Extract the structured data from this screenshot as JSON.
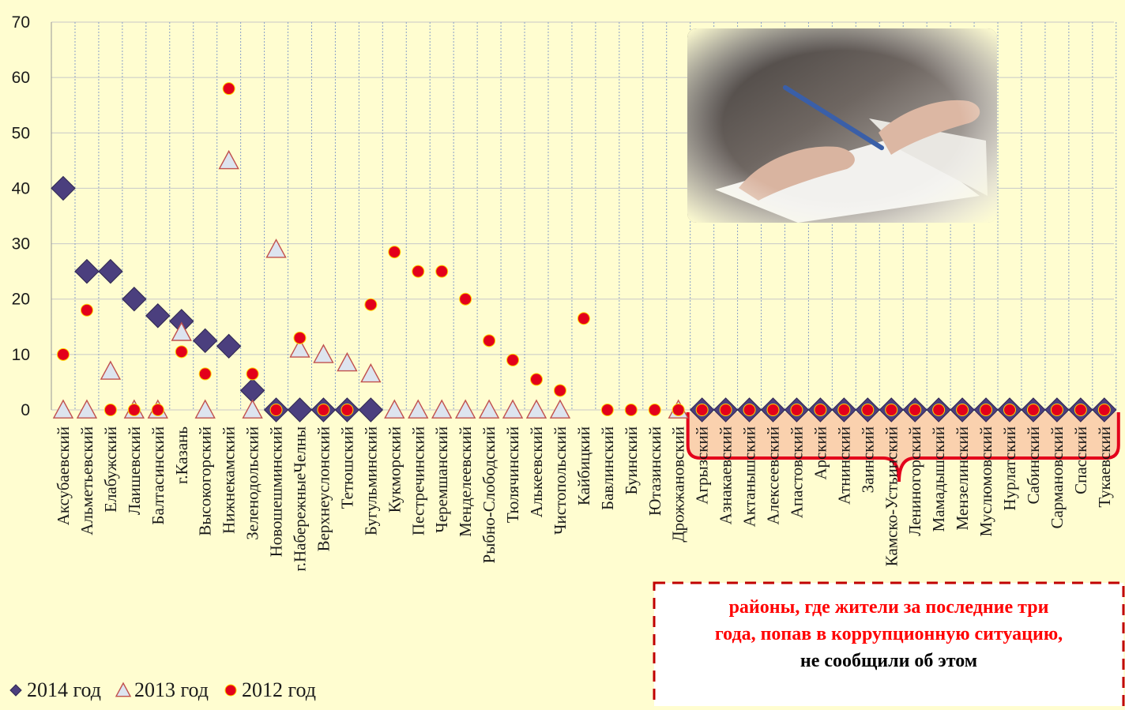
{
  "chart_data": {
    "type": "scatter",
    "categories": [
      "Аксубаевский",
      "Альметьевский",
      "Елабужский",
      "Лаишевский",
      "Балтасинский",
      "г.Казань",
      "Высокогорский",
      "Нижнекамский",
      "Зеленодольский",
      "Новошешминский",
      "г.НабережныеЧелны",
      "Верхнеуслонский",
      "Тетюшский",
      "Бугульминский",
      "Кукморский",
      "Пестречинский",
      "Черемшанский",
      "Менделеевский",
      "Рыбно-Слободский",
      "Тюлячинский",
      "Алькеевский",
      "Чистопольский",
      "Кайбицкий",
      "Бавлинский",
      "Буинский",
      "Ютазинский",
      "Дрожжановский",
      "Агрызский",
      "Азнакаевский",
      "Актанышский",
      "Алексеевский",
      "Апастовский",
      "Арский",
      "Атнинский",
      "Заинский",
      "Камско-Устьинский",
      "Лениногорский",
      "Мамадышский",
      "Мензелинский",
      "Муслюмовский",
      "Нурлатский",
      "Сабинский",
      "Сармановский",
      "Спасский",
      "Тукаевский"
    ],
    "series": [
      {
        "name": "2014 год",
        "marker": "diamond",
        "color": "#4b3f7e",
        "values": [
          40,
          25,
          25,
          20,
          17,
          16,
          12.5,
          11.5,
          3.5,
          0,
          0,
          0,
          0,
          0,
          null,
          null,
          null,
          null,
          null,
          null,
          null,
          null,
          null,
          null,
          null,
          null,
          null,
          0,
          0,
          0,
          0,
          0,
          0,
          0,
          0,
          0,
          0,
          0,
          0,
          0,
          0,
          0,
          0,
          0,
          0
        ]
      },
      {
        "name": "2013 год",
        "marker": "triangle",
        "color": "#dde4ef",
        "values": [
          0,
          0,
          7,
          0,
          0,
          14,
          0,
          45,
          0,
          29,
          11,
          10,
          8.5,
          6.5,
          0,
          0,
          0,
          0,
          0,
          0,
          0,
          0,
          null,
          null,
          null,
          null,
          0,
          null,
          null,
          null,
          null,
          null,
          null,
          null,
          null,
          null,
          null,
          null,
          null,
          null,
          null,
          null,
          null,
          null,
          null
        ]
      },
      {
        "name": "2012 год",
        "marker": "circle",
        "color": "#e3001b",
        "values": [
          10,
          18,
          0,
          0,
          0,
          10.5,
          6.5,
          58,
          6.5,
          0,
          13,
          0,
          0,
          19,
          28.5,
          25,
          25,
          20,
          12.5,
          9,
          5.5,
          3.5,
          16.5,
          0,
          0,
          0,
          0,
          0,
          0,
          0,
          0,
          0,
          0,
          0,
          0,
          0,
          0,
          0,
          0,
          0,
          0,
          0,
          0,
          0,
          0
        ]
      }
    ],
    "ylim": [
      0,
      70
    ],
    "yticks": [
      0,
      10,
      20,
      30,
      40,
      50,
      60,
      70
    ],
    "grid": "vertical dotted per category",
    "legend": "bottom-left",
    "highlight_group": {
      "from": "Агрызский",
      "to": "Тукаевский"
    }
  },
  "callout": {
    "line1": "районы, где жители за последние три",
    "line2": "года, попав в коррупционную ситуацию,",
    "line3": "не сообщили об этом"
  },
  "colors": {
    "background": "#fffdd0",
    "highlight_fill": "#f9c9a8",
    "highlight_stroke": "#e3001b",
    "callout_border": "#c00000"
  }
}
